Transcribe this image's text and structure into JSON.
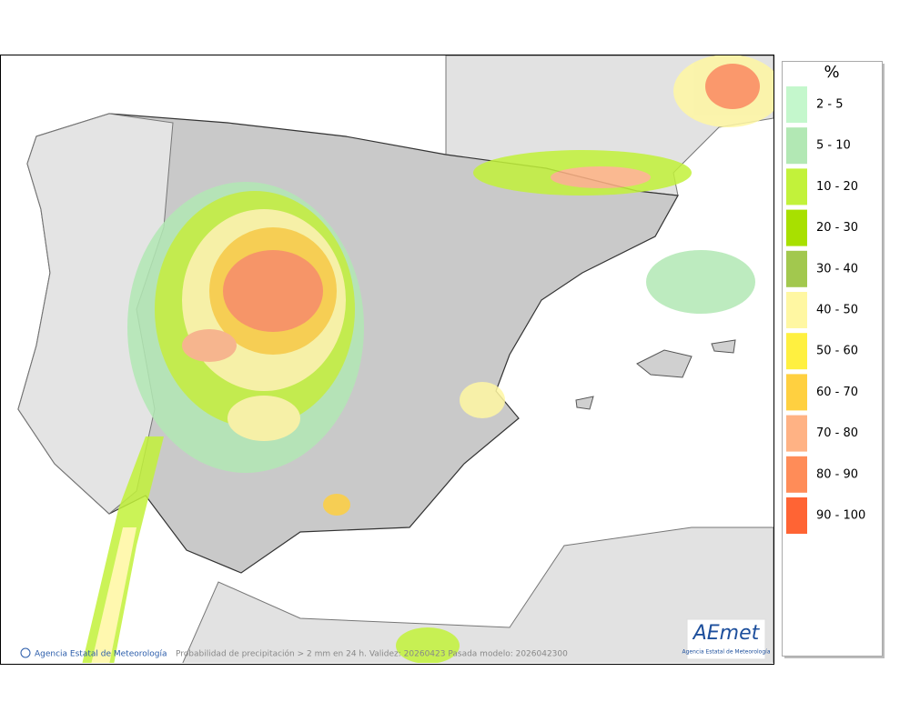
{
  "map": {
    "footer_credit": "Agencia Estatal de Meteorología",
    "footer_caption": "Probabilidad de precipitación > 2 mm en 24 h. Validez: 20260423 Pasada modelo: 2026042300",
    "logo": "AEmet",
    "logo_subtitle": "Agencia Estatal de Meteorología"
  },
  "legend": {
    "title": "%",
    "items": [
      {
        "label": "2 - 5",
        "color": "#c4f7cc"
      },
      {
        "label": "5 - 10",
        "color": "#b2e8b4"
      },
      {
        "label": "10 - 20",
        "color": "#c2f23a"
      },
      {
        "label": "20 - 30",
        "color": "#a8e000"
      },
      {
        "label": "30 - 40",
        "color": "#a2c84e"
      },
      {
        "label": "40 - 50",
        "color": "#fff7a2"
      },
      {
        "label": "50 - 60",
        "color": "#fff040"
      },
      {
        "label": "60 - 70",
        "color": "#ffd040"
      },
      {
        "label": "70 - 80",
        "color": "#ffb284"
      },
      {
        "label": "80 - 90",
        "color": "#ff8c58"
      },
      {
        "label": "90 - 100",
        "color": "#ff6434"
      }
    ]
  }
}
